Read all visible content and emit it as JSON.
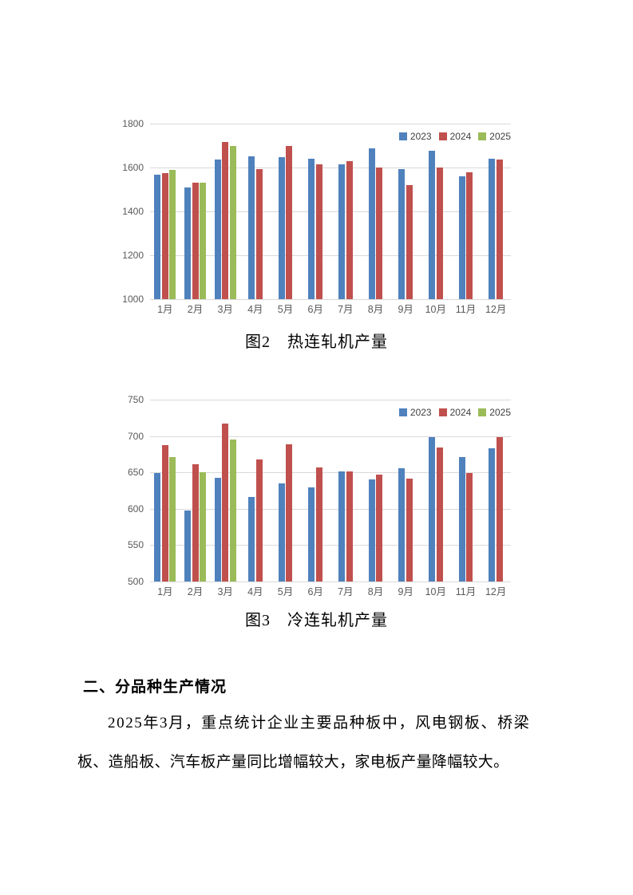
{
  "figures": [
    {
      "caption": "图2　热连轧机产量"
    },
    {
      "caption": "图3　冷连轧机产量"
    }
  ],
  "section": {
    "heading": "二、分品种生产情况",
    "paragraph_lines": [
      "2025年3月，重点统计企业主要品种板中，风电钢板、桥梁",
      "板、造船板、汽车板产量同比增幅较大，家电板产量降幅较大。"
    ]
  },
  "colors": {
    "series_2023": "#4f81bd",
    "series_2024": "#c0504d",
    "series_2025": "#9bbb59",
    "gridline": "#d9d9d9",
    "tick_label": "#595959",
    "legend_text": "#404040"
  },
  "chart_data": [
    {
      "type": "bar",
      "title": "图2　热连轧机产量",
      "xlabel": "",
      "ylabel": "",
      "categories": [
        "1月",
        "2月",
        "3月",
        "4月",
        "5月",
        "6月",
        "7月",
        "8月",
        "9月",
        "10月",
        "11月",
        "12月"
      ],
      "series": [
        {
          "name": "2023",
          "values": [
            1566,
            1511,
            1636,
            1652,
            1648,
            1642,
            1616,
            1687,
            1592,
            1675,
            1560,
            1642
          ]
        },
        {
          "name": "2024",
          "values": [
            1575,
            1531,
            1718,
            1592,
            1697,
            1614,
            1628,
            1599,
            1519,
            1599,
            1579,
            1638
          ]
        },
        {
          "name": "2025",
          "values": [
            1588,
            1531,
            1698,
            null,
            null,
            null,
            null,
            null,
            null,
            null,
            null,
            null
          ]
        }
      ],
      "ylim": [
        1000,
        1800
      ],
      "yticks": [
        1000,
        1200,
        1400,
        1600,
        1800
      ],
      "grid": true,
      "legend": [
        "2023",
        "2024",
        "2025"
      ],
      "legend_position": "top-right"
    },
    {
      "type": "bar",
      "title": "图3　冷连轧机产量",
      "xlabel": "",
      "ylabel": "",
      "categories": [
        "1月",
        "2月",
        "3月",
        "4月",
        "5月",
        "6月",
        "7月",
        "8月",
        "9月",
        "10月",
        "11月",
        "12月"
      ],
      "series": [
        {
          "name": "2023",
          "values": [
            649,
            598,
            643,
            616,
            635,
            629,
            651,
            640,
            656,
            698,
            671,
            683
          ]
        },
        {
          "name": "2024",
          "values": [
            688,
            661,
            717,
            668,
            689,
            657,
            651,
            647,
            641,
            684,
            649,
            698
          ]
        },
        {
          "name": "2025",
          "values": [
            671,
            650,
            695,
            null,
            null,
            null,
            null,
            null,
            null,
            null,
            null,
            null
          ]
        }
      ],
      "ylim": [
        500,
        750
      ],
      "yticks": [
        500,
        550,
        600,
        650,
        700,
        750
      ],
      "grid": true,
      "legend": [
        "2023",
        "2024",
        "2025"
      ],
      "legend_position": "top-right"
    }
  ]
}
